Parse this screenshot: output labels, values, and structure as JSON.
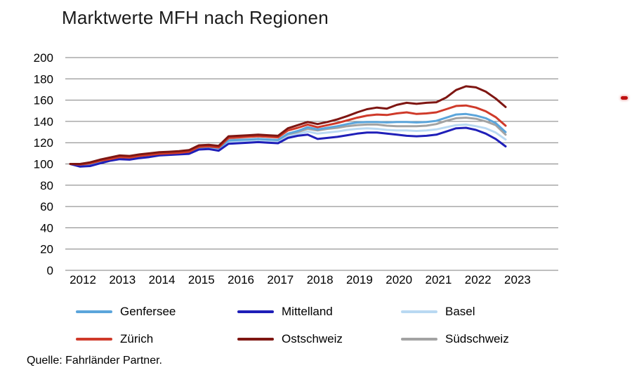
{
  "source": "Quelle: Fahrländer Partner.",
  "marker": {
    "color": "#be1010"
  },
  "axis_color": "#7f7f7f",
  "text_color": "#000000",
  "chart_data": {
    "type": "line",
    "title": "Marktwerte MFH nach Regionen",
    "xlabel": "",
    "ylabel": "",
    "ylim": [
      0,
      200
    ],
    "y_ticks": [
      0,
      20,
      40,
      60,
      80,
      100,
      120,
      140,
      160,
      180,
      200
    ],
    "x_tick_labels": [
      "2012",
      "2013",
      "2014",
      "2015",
      "2016",
      "2017",
      "2018",
      "2019",
      "2020",
      "2021",
      "2022",
      "2023"
    ],
    "x_unit": "quarterly index points from 2012Q1 to 2023Q1, base 2012 = 100",
    "grid": "horizontal",
    "legend_position": "bottom",
    "draw_order": [
      "Basel",
      "Südschweiz",
      "Genfersee",
      "Mittelland",
      "Zürich",
      "Ostschweiz"
    ],
    "series": [
      {
        "name": "Genfersee",
        "color": "#5ba5db",
        "values": [
          100,
          99.5,
          100,
          102.5,
          104,
          106,
          105.5,
          107,
          108,
          109.5,
          110,
          110.5,
          111,
          115.5,
          116,
          115,
          122,
          122.5,
          123,
          123.5,
          123,
          122.5,
          128.5,
          131,
          134.5,
          132.5,
          134,
          135.5,
          137.5,
          139,
          139.5,
          139.5,
          139,
          139.5,
          139.5,
          139,
          139.5,
          140.5,
          143.5,
          146.5,
          147,
          145.5,
          143,
          138.5,
          130
        ]
      },
      {
        "name": "Mittelland",
        "color": "#1f1fb8",
        "values": [
          100,
          97.5,
          98,
          100.5,
          103,
          104.5,
          104,
          105.5,
          106.5,
          108,
          108.5,
          109,
          109.5,
          113.5,
          114,
          112.5,
          119,
          119.5,
          120,
          120.5,
          120,
          119.5,
          124.5,
          126.5,
          127.5,
          123.5,
          124.5,
          125.5,
          127,
          128.5,
          129.5,
          129.5,
          128.5,
          127.5,
          126.5,
          126,
          126.5,
          127.5,
          130.5,
          133.5,
          134,
          132,
          128.5,
          123.5,
          116.5
        ]
      },
      {
        "name": "Basel",
        "color": "#b9d9f2",
        "values": [
          100,
          99.5,
          100,
          102,
          103.5,
          105.5,
          105,
          106.5,
          107.5,
          109,
          109.5,
          110,
          110.5,
          114.5,
          115,
          114,
          120.5,
          121,
          121.5,
          122,
          121.5,
          121,
          126,
          128,
          130.5,
          128.5,
          129.5,
          130.5,
          132,
          133,
          133.5,
          133,
          132,
          131.5,
          131.5,
          131,
          131.5,
          132.5,
          134.5,
          136.5,
          137,
          135.5,
          133.5,
          129.5,
          123
        ]
      },
      {
        "name": "Zürich",
        "color": "#cf3a2a",
        "values": [
          100,
          99.5,
          100.5,
          103,
          104.5,
          106.5,
          106,
          107.5,
          108.5,
          109.5,
          110,
          110.5,
          111.5,
          116,
          116.5,
          115.5,
          124.5,
          125,
          125.5,
          126,
          125.5,
          125,
          131.5,
          134,
          137,
          134.5,
          136.5,
          138.5,
          141,
          143.5,
          145.5,
          146.5,
          146,
          147.5,
          148.5,
          147,
          147.5,
          148.5,
          151.5,
          154.5,
          155,
          153,
          149.5,
          144,
          136
        ]
      },
      {
        "name": "Ostschweiz",
        "color": "#7e1612",
        "values": [
          100,
          100,
          101.5,
          104,
          106,
          108,
          107.5,
          109,
          110,
          111,
          111.5,
          112,
          113,
          117.5,
          118,
          117,
          126,
          126.5,
          127,
          127.5,
          127,
          126.5,
          133.5,
          136.5,
          139.5,
          137.5,
          139.5,
          142,
          145,
          148.5,
          151.5,
          153,
          152,
          155.5,
          157.5,
          156.5,
          157.5,
          158,
          162.5,
          169.5,
          173,
          172,
          168,
          161.5,
          153.5
        ]
      },
      {
        "name": "Südschweiz",
        "color": "#a3a3a3",
        "values": [
          100,
          100,
          100.5,
          102.5,
          104.5,
          106.5,
          106,
          107.5,
          108.5,
          110,
          110.5,
          111,
          111.5,
          116,
          116.5,
          115.5,
          122.5,
          123,
          123,
          123.5,
          123,
          122.5,
          128,
          130,
          133,
          131.5,
          133,
          134,
          135.5,
          136.5,
          137,
          137,
          136,
          135.5,
          135.5,
          135.5,
          136,
          137.5,
          140.5,
          143,
          143.5,
          142.5,
          140,
          136.5,
          127.5
        ]
      }
    ]
  }
}
